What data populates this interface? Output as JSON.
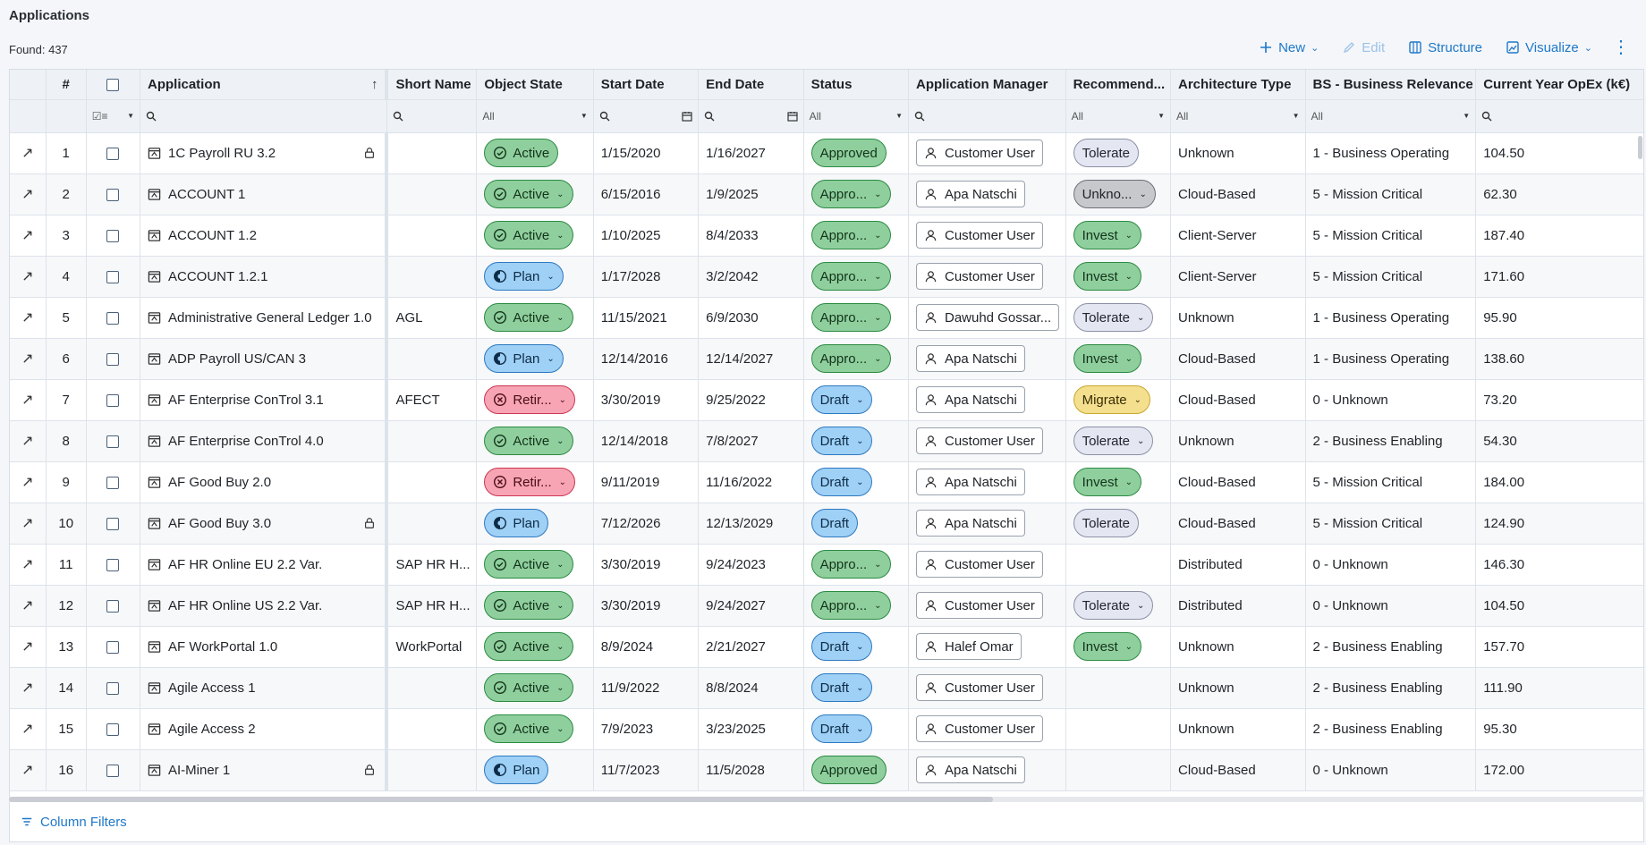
{
  "page": {
    "title": "Applications",
    "found": "Found: 437"
  },
  "toolbar": {
    "new_label": "New",
    "edit_label": "Edit",
    "structure_label": "Structure",
    "visualize_label": "Visualize"
  },
  "columns": {
    "num": "#",
    "application": "Application",
    "short_name": "Short Name",
    "object_state": "Object State",
    "start_date": "Start Date",
    "end_date": "End Date",
    "status": "Status",
    "app_manager": "Application Manager",
    "recommendation": "Recommend...",
    "arch_type": "Architecture Type",
    "bs_relevance": "BS - Business Relevance",
    "opex": "Current Year OpEx (k€)"
  },
  "filters": {
    "all": "All"
  },
  "rows": [
    {
      "num": "1",
      "app": "1C Payroll RU 3.2",
      "lock": true,
      "short": "",
      "state": "Active",
      "state_kind": "active",
      "state_chev": false,
      "start": "1/15/2020",
      "end": "1/16/2027",
      "status": "Approved",
      "status_kind": "approved",
      "status_chev": false,
      "mgr": "Customer User",
      "rec": "Tolerate",
      "rec_kind": "tolerate",
      "rec_chev": false,
      "arch": "Unknown",
      "bs": "1 - Business Operating",
      "opex": "104.50"
    },
    {
      "num": "2",
      "app": "ACCOUNT 1",
      "lock": false,
      "short": "",
      "state": "Active",
      "state_kind": "active",
      "state_chev": true,
      "start": "6/15/2016",
      "end": "1/9/2025",
      "status": "Appro...",
      "status_kind": "approved",
      "status_chev": true,
      "mgr": "Apa Natschi",
      "rec": "Unkno...",
      "rec_kind": "unknown",
      "rec_chev": true,
      "arch": "Cloud-Based",
      "bs": "5 - Mission Critical",
      "opex": "62.30"
    },
    {
      "num": "3",
      "app": "ACCOUNT 1.2",
      "lock": false,
      "short": "",
      "state": "Active",
      "state_kind": "active",
      "state_chev": true,
      "start": "1/10/2025",
      "end": "8/4/2033",
      "status": "Appro...",
      "status_kind": "approved",
      "status_chev": true,
      "mgr": "Customer User",
      "rec": "Invest",
      "rec_kind": "invest",
      "rec_chev": true,
      "arch": "Client-Server",
      "bs": "5 - Mission Critical",
      "opex": "187.40"
    },
    {
      "num": "4",
      "app": "ACCOUNT 1.2.1",
      "lock": false,
      "short": "",
      "state": "Plan",
      "state_kind": "plan",
      "state_chev": true,
      "start": "1/17/2028",
      "end": "3/2/2042",
      "status": "Appro...",
      "status_kind": "approved",
      "status_chev": true,
      "mgr": "Customer User",
      "rec": "Invest",
      "rec_kind": "invest",
      "rec_chev": true,
      "arch": "Client-Server",
      "bs": "5 - Mission Critical",
      "opex": "171.60"
    },
    {
      "num": "5",
      "app": "Administrative General Ledger 1.0",
      "lock": false,
      "short": "AGL",
      "state": "Active",
      "state_kind": "active",
      "state_chev": true,
      "start": "11/15/2021",
      "end": "6/9/2030",
      "status": "Appro...",
      "status_kind": "approved",
      "status_chev": true,
      "mgr": "Dawuhd Gossar...",
      "rec": "Tolerate",
      "rec_kind": "tolerate",
      "rec_chev": true,
      "arch": "Unknown",
      "bs": "1 - Business Operating",
      "opex": "95.90"
    },
    {
      "num": "6",
      "app": "ADP Payroll US/CAN 3",
      "lock": false,
      "short": "",
      "state": "Plan",
      "state_kind": "plan",
      "state_chev": true,
      "start": "12/14/2016",
      "end": "12/14/2027",
      "status": "Appro...",
      "status_kind": "approved",
      "status_chev": true,
      "mgr": "Apa Natschi",
      "rec": "Invest",
      "rec_kind": "invest",
      "rec_chev": true,
      "arch": "Cloud-Based",
      "bs": "1 - Business Operating",
      "opex": "138.60"
    },
    {
      "num": "7",
      "app": "AF Enterprise ConTrol 3.1",
      "lock": false,
      "short": "AFECT",
      "state": "Retir...",
      "state_kind": "retired",
      "state_chev": true,
      "start": "3/30/2019",
      "end": "9/25/2022",
      "status": "Draft",
      "status_kind": "draft",
      "status_chev": true,
      "mgr": "Apa Natschi",
      "rec": "Migrate",
      "rec_kind": "migrate",
      "rec_chev": true,
      "arch": "Cloud-Based",
      "bs": "0 - Unknown",
      "opex": "73.20"
    },
    {
      "num": "8",
      "app": "AF Enterprise ConTrol 4.0",
      "lock": false,
      "short": "",
      "state": "Active",
      "state_kind": "active",
      "state_chev": true,
      "start": "12/14/2018",
      "end": "7/8/2027",
      "status": "Draft",
      "status_kind": "draft",
      "status_chev": true,
      "mgr": "Customer User",
      "rec": "Tolerate",
      "rec_kind": "tolerate",
      "rec_chev": true,
      "arch": "Unknown",
      "bs": "2 - Business Enabling",
      "opex": "54.30"
    },
    {
      "num": "9",
      "app": "AF Good Buy 2.0",
      "lock": false,
      "short": "",
      "state": "Retir...",
      "state_kind": "retired",
      "state_chev": true,
      "start": "9/11/2019",
      "end": "11/16/2022",
      "status": "Draft",
      "status_kind": "draft",
      "status_chev": true,
      "mgr": "Apa Natschi",
      "rec": "Invest",
      "rec_kind": "invest",
      "rec_chev": true,
      "arch": "Cloud-Based",
      "bs": "5 - Mission Critical",
      "opex": "184.00"
    },
    {
      "num": "10",
      "app": "AF Good Buy 3.0",
      "lock": true,
      "short": "",
      "state": "Plan",
      "state_kind": "plan",
      "state_chev": false,
      "start": "7/12/2026",
      "end": "12/13/2029",
      "status": "Draft",
      "status_kind": "draft",
      "status_chev": false,
      "mgr": "Apa Natschi",
      "rec": "Tolerate",
      "rec_kind": "tolerate",
      "rec_chev": false,
      "arch": "Cloud-Based",
      "bs": "5 - Mission Critical",
      "opex": "124.90"
    },
    {
      "num": "11",
      "app": "AF HR Online EU 2.2 Var.",
      "lock": false,
      "short": "SAP HR H...",
      "state": "Active",
      "state_kind": "active",
      "state_chev": true,
      "start": "3/30/2019",
      "end": "9/24/2023",
      "status": "Appro...",
      "status_kind": "approved",
      "status_chev": true,
      "mgr": "Customer User",
      "rec": "",
      "rec_kind": "",
      "rec_chev": false,
      "arch": "Distributed",
      "bs": "0 - Unknown",
      "opex": "146.30"
    },
    {
      "num": "12",
      "app": "AF HR Online US 2.2 Var.",
      "lock": false,
      "short": "SAP HR H...",
      "state": "Active",
      "state_kind": "active",
      "state_chev": true,
      "start": "3/30/2019",
      "end": "9/24/2027",
      "status": "Appro...",
      "status_kind": "approved",
      "status_chev": true,
      "mgr": "Customer User",
      "rec": "Tolerate",
      "rec_kind": "tolerate",
      "rec_chev": true,
      "arch": "Distributed",
      "bs": "0 - Unknown",
      "opex": "104.50"
    },
    {
      "num": "13",
      "app": "AF WorkPortal 1.0",
      "lock": false,
      "short": "WorkPortal",
      "state": "Active",
      "state_kind": "active",
      "state_chev": true,
      "start": "8/9/2024",
      "end": "2/21/2027",
      "status": "Draft",
      "status_kind": "draft",
      "status_chev": true,
      "mgr": "Halef Omar",
      "rec": "Invest",
      "rec_kind": "invest",
      "rec_chev": true,
      "arch": "Unknown",
      "bs": "2 - Business Enabling",
      "opex": "157.70"
    },
    {
      "num": "14",
      "app": "Agile Access 1",
      "lock": false,
      "short": "",
      "state": "Active",
      "state_kind": "active",
      "state_chev": true,
      "start": "11/9/2022",
      "end": "8/8/2024",
      "status": "Draft",
      "status_kind": "draft",
      "status_chev": true,
      "mgr": "Customer User",
      "rec": "",
      "rec_kind": "",
      "rec_chev": false,
      "arch": "Unknown",
      "bs": "2 - Business Enabling",
      "opex": "111.90"
    },
    {
      "num": "15",
      "app": "Agile Access 2",
      "lock": false,
      "short": "",
      "state": "Active",
      "state_kind": "active",
      "state_chev": true,
      "start": "7/9/2023",
      "end": "3/23/2025",
      "status": "Draft",
      "status_kind": "draft",
      "status_chev": true,
      "mgr": "Customer User",
      "rec": "",
      "rec_kind": "",
      "rec_chev": false,
      "arch": "Unknown",
      "bs": "2 - Business Enabling",
      "opex": "95.30"
    },
    {
      "num": "16",
      "app": "AI-Miner 1",
      "lock": true,
      "short": "",
      "state": "Plan",
      "state_kind": "plan",
      "state_chev": false,
      "start": "11/7/2023",
      "end": "11/5/2028",
      "status": "Approved",
      "status_kind": "approved",
      "status_chev": false,
      "mgr": "Apa Natschi",
      "rec": "",
      "rec_kind": "",
      "rec_chev": false,
      "arch": "Cloud-Based",
      "bs": "0 - Unknown",
      "opex": "172.00"
    }
  ],
  "footer": {
    "column_filters_label": "Column Filters"
  },
  "colors": {
    "accent": "#1f78c8",
    "active": "#8fcf9d",
    "plan": "#9fd0f5",
    "retired": "#f7a5b5",
    "migrate": "#f3df8e",
    "tolerate": "#e4e7f2",
    "unknown": "#c6c8cc"
  },
  "icons": {
    "open": "arrow-up-right-icon",
    "app": "application-icon",
    "lock": "lock-icon",
    "search": "search-icon",
    "calendar": "calendar-icon",
    "user": "user-icon",
    "filter": "filter-icon",
    "active": "check-circle-icon",
    "plan": "half-circle-icon",
    "retired": "x-circle-icon"
  }
}
